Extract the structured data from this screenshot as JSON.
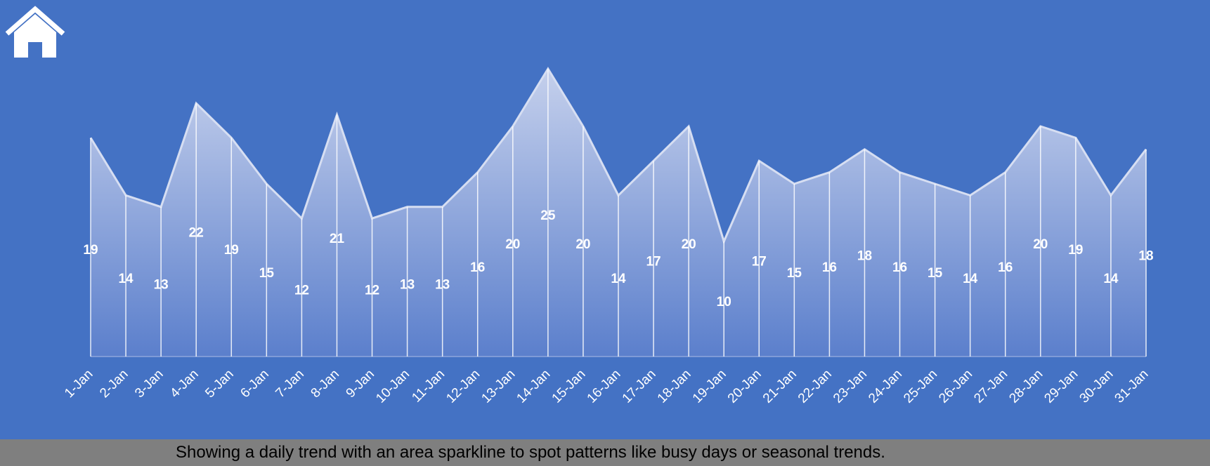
{
  "colors": {
    "background": "#4472C4",
    "area_fill_top": "#C5D0EC",
    "area_fill_bottom": "#5B7FCC",
    "lines": "#FFFFFF",
    "footer": "#7F7F7F"
  },
  "home_icon": "home-icon",
  "footer": {
    "caption": "Showing a daily trend with an area sparkline to spot patterns like busy days or seasonal trends."
  },
  "chart_data": {
    "type": "area",
    "categories": [
      "1-Jan",
      "2-Jan",
      "3-Jan",
      "4-Jan",
      "5-Jan",
      "6-Jan",
      "7-Jan",
      "8-Jan",
      "9-Jan",
      "10-Jan",
      "11-Jan",
      "12-Jan",
      "13-Jan",
      "14-Jan",
      "15-Jan",
      "16-Jan",
      "17-Jan",
      "18-Jan",
      "19-Jan",
      "20-Jan",
      "21-Jan",
      "22-Jan",
      "23-Jan",
      "24-Jan",
      "25-Jan",
      "26-Jan",
      "27-Jan",
      "28-Jan",
      "29-Jan",
      "30-Jan",
      "31-Jan"
    ],
    "values": [
      19,
      14,
      13,
      22,
      19,
      15,
      12,
      21,
      12,
      13,
      13,
      16,
      20,
      25,
      20,
      14,
      17,
      20,
      10,
      17,
      15,
      16,
      18,
      16,
      15,
      14,
      16,
      20,
      19,
      14,
      18
    ],
    "title": "",
    "xlabel": "",
    "ylabel": "",
    "ylim": [
      0,
      25
    ],
    "grid": false,
    "legend": "none",
    "data_labels": true,
    "drop_lines": true
  }
}
